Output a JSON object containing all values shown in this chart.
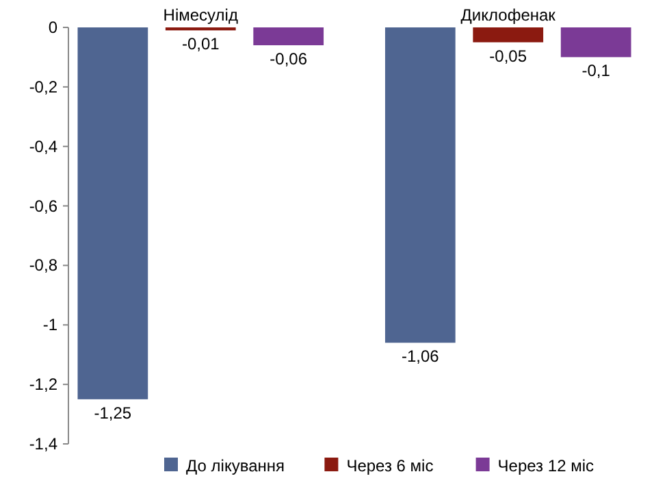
{
  "chart_data": {
    "type": "bar",
    "categories": [
      "Німесулід",
      "Диклофенак"
    ],
    "series": [
      {
        "name": "До лікування",
        "color": "#4f6591",
        "values": [
          -1.25,
          -1.06
        ],
        "value_labels": [
          "-1,25",
          "-1,06"
        ]
      },
      {
        "name": "Через 6 міс",
        "color": "#8b1a10",
        "values": [
          -0.01,
          -0.05
        ],
        "value_labels": [
          "-0,01",
          "-0,05"
        ]
      },
      {
        "name": "Через 12 міс",
        "color": "#7b3a96",
        "values": [
          -0.06,
          -0.1
        ],
        "value_labels": [
          "-0,06",
          "-0,1"
        ]
      }
    ],
    "ylim": [
      -1.4,
      0
    ],
    "yticks": [
      0,
      {
        "value": -0.2,
        "label": "-0,2"
      },
      {
        "value": -0.4,
        "label": "-0,4"
      },
      {
        "value": -0.6,
        "label": "-0,6"
      },
      {
        "value": -0.8,
        "label": "-0,8"
      },
      -1,
      {
        "value": -1.2,
        "label": "-1,2"
      },
      {
        "value": -1.4,
        "label": "-1,4"
      }
    ],
    "grid": false,
    "legend": "bottom"
  }
}
